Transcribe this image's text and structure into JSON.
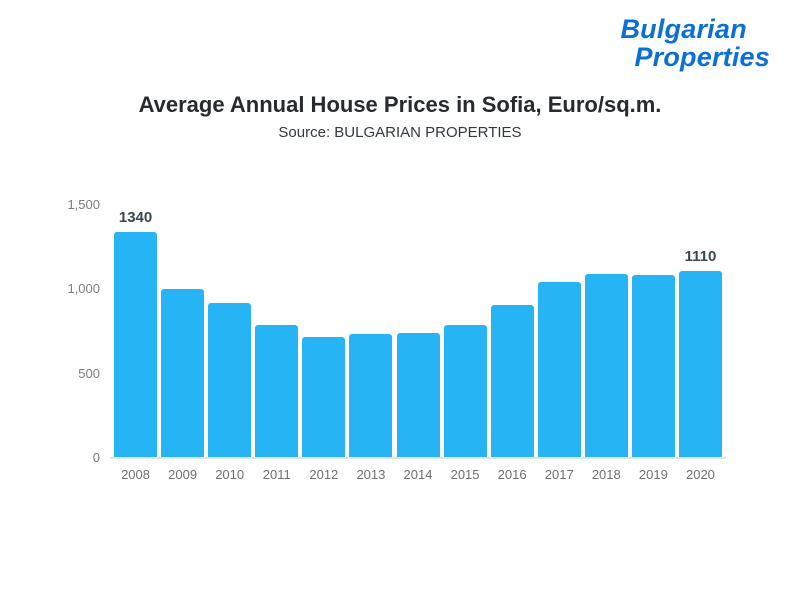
{
  "logo": {
    "line1": "Bulgarian",
    "line2": "Properties"
  },
  "header": {
    "title": "Average Annual House Prices in Sofia, Euro/sq.m.",
    "subtitle": "Source: BULGARIAN PROPERTIES"
  },
  "colors": {
    "bar": "#27b4f5",
    "logo_blue": "#0a6fd8",
    "axis_text": "#7c7c7c",
    "annotation_text": "#37474f"
  },
  "chart_data": {
    "type": "bar",
    "title": "Average Annual House Prices in Sofia, Euro/sq.m.",
    "subtitle": "Source: BULGARIAN PROPERTIES",
    "categories": [
      "2008",
      "2009",
      "2010",
      "2011",
      "2012",
      "2013",
      "2014",
      "2015",
      "2016",
      "2017",
      "2018",
      "2019",
      "2020"
    ],
    "values": [
      1340,
      1000,
      920,
      790,
      720,
      735,
      740,
      790,
      905,
      1045,
      1090,
      1085,
      1110
    ],
    "xlabel": "",
    "ylabel": "",
    "ylim": [
      0,
      1500
    ],
    "yticks": [
      {
        "value": 1500,
        "label": "1,500"
      },
      {
        "value": 1000,
        "label": "1,000"
      },
      {
        "value": 500,
        "label": "500"
      },
      {
        "value": 0,
        "label": "0"
      }
    ],
    "annotations": [
      {
        "index": 0,
        "text": "1340"
      },
      {
        "index": 12,
        "text": "1110"
      }
    ],
    "grid": false,
    "legend": false
  }
}
